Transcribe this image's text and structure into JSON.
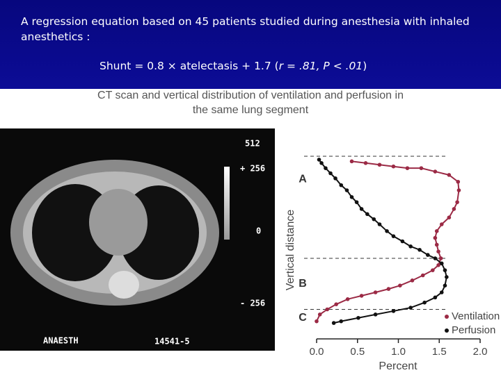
{
  "slide": {
    "intro": "A regression equation based on 45 patients studied during anesthesia with inhaled anesthetics :",
    "equation": {
      "main": "Shunt = 0.8 × atelectasis + 1.7 (",
      "stats": "r = .81, P < .01",
      "close": ")"
    }
  },
  "ct_scan": {
    "labels": [
      "512",
      "+ 256",
      "0",
      "- 256",
      "ANAESTH",
      "14541-5"
    ]
  },
  "chart_data": {
    "type": "line",
    "title": "CT scan and vertical distribution of ventilation and perfusion in the same lung segment",
    "xlabel": "Percent",
    "ylabel": "Vertical distance",
    "xlim": [
      0,
      2
    ],
    "xticks": [
      {
        "value": 0,
        "label": "0.0"
      },
      0.5,
      {
        "value": 1,
        "label": "1.0"
      },
      1.5,
      {
        "value": 2,
        "label": "2.0"
      }
    ],
    "ylim": [
      0,
      100
    ],
    "regions": [
      "A",
      "B",
      "C"
    ],
    "boundaries": [
      100,
      40,
      10
    ],
    "series": [
      {
        "name": "Ventilation",
        "color": "#9b2a45",
        "x": [
          0.43,
          0.6,
          0.77,
          0.94,
          1.11,
          1.28,
          1.45,
          1.62,
          1.73,
          1.74,
          1.72,
          1.68,
          1.62,
          1.53,
          1.47,
          1.45,
          1.47,
          1.49,
          1.52,
          1.49,
          1.42,
          1.3,
          1.17,
          1.02,
          0.88,
          0.72,
          0.55,
          0.38,
          0.24,
          0.13,
          0.04,
          0.0
        ],
        "y": [
          97,
          96,
          95,
          94,
          93,
          93,
          91,
          89,
          85,
          80,
          73,
          69,
          64,
          60,
          56,
          52,
          48,
          44,
          40,
          36,
          33,
          30,
          27,
          24,
          22,
          20,
          18,
          16,
          13,
          10,
          7,
          3
        ]
      },
      {
        "name": "Perfusion",
        "color": "#111111",
        "x": [
          0.03,
          0.06,
          0.11,
          0.17,
          0.23,
          0.3,
          0.37,
          0.43,
          0.49,
          0.55,
          0.62,
          0.7,
          0.77,
          0.86,
          0.94,
          1.05,
          1.15,
          1.26,
          1.36,
          1.45,
          1.53,
          1.57,
          1.59,
          1.57,
          1.53,
          1.45,
          1.32,
          1.15,
          0.94,
          0.72,
          0.51,
          0.3,
          0.21
        ],
        "y": [
          98,
          96,
          93,
          90,
          87,
          83,
          80,
          76,
          73,
          69,
          66,
          63,
          60,
          56,
          53,
          50,
          47,
          45,
          42,
          40,
          37,
          33,
          29,
          24,
          20,
          17,
          14,
          11,
          9,
          7,
          5,
          3,
          2
        ]
      }
    ]
  }
}
